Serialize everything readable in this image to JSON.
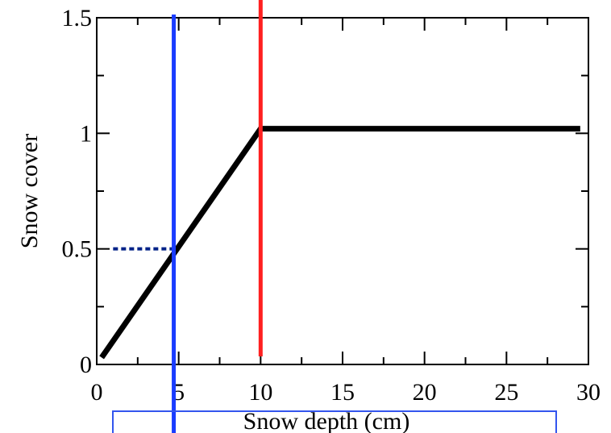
{
  "chart_data": {
    "type": "line",
    "xlabel": "Snow depth (cm)",
    "ylabel": "Snow cover",
    "xlim": [
      0,
      30
    ],
    "ylim": [
      0,
      1.5
    ],
    "x_ticks": [
      0,
      5,
      10,
      15,
      20,
      25,
      30
    ],
    "x_tick_labels": [
      "0",
      "5",
      "10",
      "15",
      "20",
      "25",
      "30"
    ],
    "y_ticks": [
      0,
      0.5,
      1,
      1.5
    ],
    "y_tick_labels": [
      "0",
      "0.5",
      "1",
      "1.5"
    ],
    "grid": false,
    "series": [
      {
        "x": [
          0.3,
          10,
          29.5
        ],
        "y": [
          0.03,
          1.02,
          1.02
        ],
        "color": "#000000"
      }
    ],
    "vertical_lines": [
      {
        "x": 4.7,
        "color": "#1a3cff"
      },
      {
        "x": 10,
        "color": "#ff2020"
      }
    ],
    "reference_lines": [
      {
        "x": [
          1,
          4.7
        ],
        "y": [
          0.5,
          0.5
        ],
        "color": "#002288",
        "style": "dotted"
      }
    ],
    "annotation_box": {
      "color": "#3355ee"
    }
  }
}
